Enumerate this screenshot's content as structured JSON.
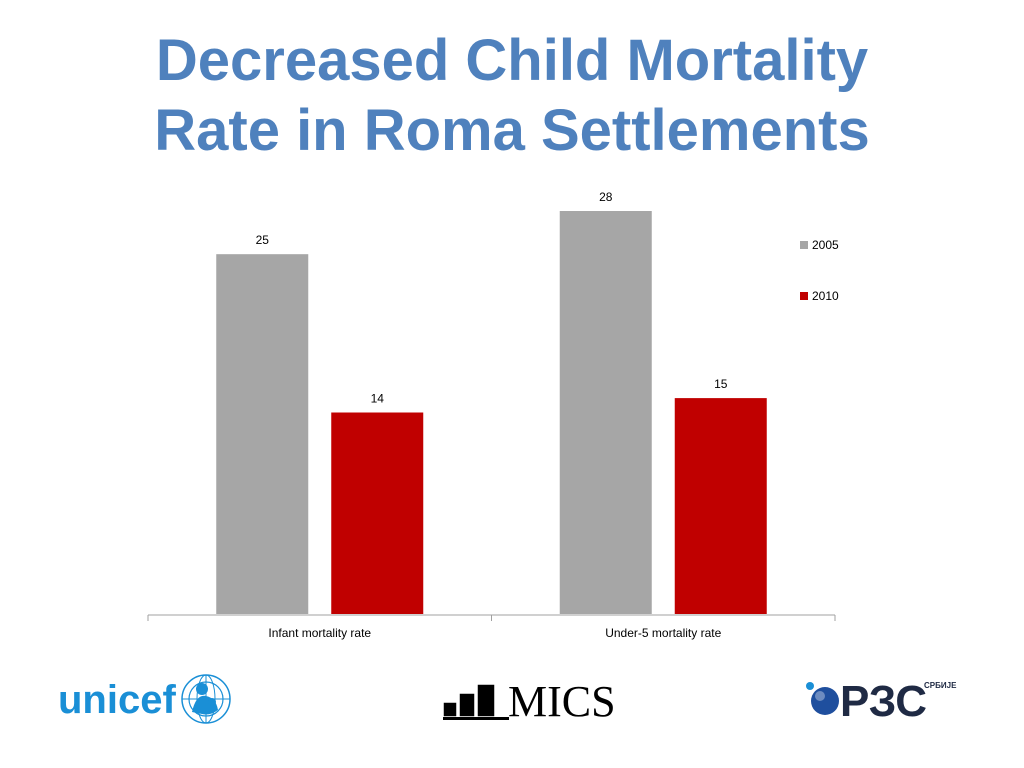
{
  "slide": {
    "title_line1": "Decreased Child Mortality",
    "title_line2": "Rate in Roma Settlements"
  },
  "chart_data": {
    "type": "bar",
    "categories": [
      "Infant mortality rate",
      "Under-5 mortality rate"
    ],
    "series": [
      {
        "name": "2005",
        "values": [
          25,
          28
        ],
        "color": "#a6a6a6"
      },
      {
        "name": "2010",
        "values": [
          14,
          15
        ],
        "color": "#c00000"
      }
    ],
    "ylim": [
      0,
      28
    ],
    "grid": false,
    "legend_position": "right",
    "data_labels": true
  },
  "logos": {
    "unicef": {
      "text": "unicef",
      "icon": "unicef-emblem-icon",
      "color": "#1a8fd6"
    },
    "mics": {
      "text": "MICS",
      "icon": "mics-bars-icon"
    },
    "rzs": {
      "text": "РЗС",
      "subtext": "СРБИЈЕ",
      "icon": "rzs-dots-icon",
      "color": "#1f2a44"
    }
  }
}
